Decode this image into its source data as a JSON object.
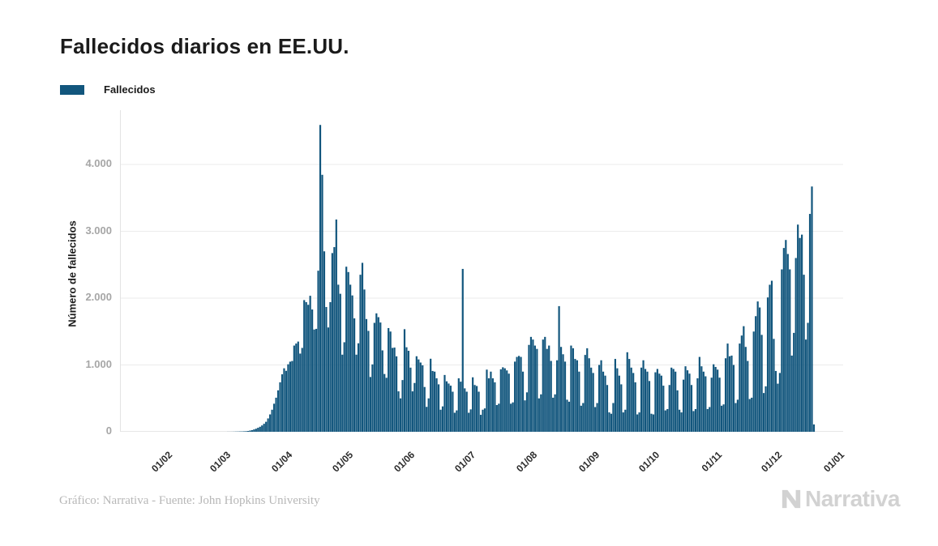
{
  "page": {
    "background": "#ffffff"
  },
  "header": {
    "title": "Fallecidos diarios en EE.UU."
  },
  "legend": {
    "items": [
      {
        "label": "Fallecidos",
        "color": "#12567d"
      }
    ]
  },
  "colors": {
    "bar": "#12567d",
    "grid_line": "#ebebeb",
    "baseline": "#cfcfcf",
    "axis_line": "#e3e3e3",
    "y_tick_text": "#a6a6a6",
    "x_tick_text": "#2b2b2b",
    "title_text": "#1b1b1b",
    "footer_text": "#b7b7b7",
    "brand_text": "#d2d2d2"
  },
  "footer": {
    "credit": "Gráfico: Narrativa - Fuente: John Hopkins University",
    "brand": "Narrativa"
  },
  "chart_data": {
    "type": "bar",
    "title": "Fallecidos diarios en EE.UU.",
    "xlabel": "",
    "ylabel": "Número de fallecidos",
    "series_name": "Fallecidos",
    "bar_color": "#12567d",
    "grid": true,
    "legend_position": "top-left",
    "ylim": [
      0,
      4600
    ],
    "yticks": [
      0,
      1000,
      2000,
      3000,
      4000
    ],
    "ytick_labels": [
      "0",
      "1.000",
      "2.000",
      "3.000",
      "4.000"
    ],
    "x_domain": {
      "start": "2020-01-01",
      "end": "2021-01-01"
    },
    "x_ticks": [
      {
        "date": "2020-02-01",
        "label": "01/02"
      },
      {
        "date": "2020-03-01",
        "label": "01/03"
      },
      {
        "date": "2020-04-01",
        "label": "01/04"
      },
      {
        "date": "2020-05-01",
        "label": "01/05"
      },
      {
        "date": "2020-06-01",
        "label": "01/06"
      },
      {
        "date": "2020-07-01",
        "label": "01/07"
      },
      {
        "date": "2020-08-01",
        "label": "01/08"
      },
      {
        "date": "2020-09-01",
        "label": "01/09"
      },
      {
        "date": "2020-10-01",
        "label": "01/10"
      },
      {
        "date": "2020-11-01",
        "label": "01/11"
      },
      {
        "date": "2020-12-01",
        "label": "01/12"
      },
      {
        "date": "2021-01-01",
        "label": "01/01"
      }
    ],
    "data_start_date": "2020-01-22",
    "frequency": "daily",
    "values": [
      0,
      0,
      0,
      0,
      0,
      0,
      0,
      0,
      0,
      0,
      0,
      0,
      0,
      0,
      0,
      0,
      0,
      0,
      0,
      0,
      0,
      0,
      0,
      0,
      0,
      0,
      0,
      0,
      0,
      0,
      0,
      0,
      0,
      0,
      0,
      0,
      0,
      0,
      1,
      1,
      1,
      2,
      3,
      4,
      5,
      6,
      7,
      9,
      12,
      18,
      25,
      35,
      46,
      60,
      75,
      95,
      120,
      150,
      200,
      260,
      330,
      420,
      510,
      620,
      740,
      860,
      950,
      912,
      1010,
      1049,
      1059,
      1290,
      1320,
      1350,
      1170,
      1255,
      1970,
      1940,
      1900,
      2035,
      1830,
      1530,
      1540,
      2410,
      4591,
      3845,
      2700,
      1867,
      1561,
      1940,
      2674,
      2763,
      3176,
      2201,
      2065,
      1154,
      1340,
      2470,
      2390,
      2201,
      2040,
      1697,
      1154,
      1324,
      2350,
      2528,
      2129,
      1687,
      1510,
      820,
      1008,
      1630,
      1772,
      1715,
      1635,
      1218,
      865,
      808,
      1552,
      1500,
      1255,
      1260,
      1129,
      605,
      500,
      774,
      1535,
      1265,
      1212,
      960,
      605,
      730,
      1130,
      1083,
      1036,
      994,
      670,
      373,
      500,
      1093,
      910,
      900,
      800,
      710,
      330,
      380,
      850,
      755,
      722,
      690,
      600,
      285,
      320,
      800,
      750,
      2437,
      650,
      600,
      285,
      335,
      815,
      700,
      685,
      600,
      254,
      330,
      350,
      930,
      800,
      900,
      800,
      740,
      400,
      420,
      935,
      965,
      950,
      918,
      870,
      420,
      440,
      1050,
      1120,
      1135,
      1120,
      900,
      470,
      590,
      1300,
      1420,
      1380,
      1290,
      1240,
      500,
      560,
      1380,
      1420,
      1240,
      1290,
      1060,
      510,
      560,
      1070,
      1880,
      1270,
      1160,
      1050,
      480,
      450,
      1290,
      1250,
      1090,
      1070,
      900,
      390,
      430,
      1150,
      1250,
      1100,
      960,
      880,
      370,
      430,
      1000,
      1070,
      900,
      840,
      700,
      290,
      270,
      430,
      1090,
      950,
      840,
      710,
      290,
      330,
      1190,
      1090,
      960,
      880,
      740,
      260,
      290,
      960,
      1070,
      940,
      900,
      760,
      270,
      260,
      890,
      940,
      870,
      840,
      690,
      320,
      340,
      700,
      960,
      940,
      900,
      620,
      330,
      290,
      780,
      980,
      920,
      870,
      700,
      310,
      340,
      800,
      1120,
      980,
      900,
      830,
      340,
      370,
      810,
      1010,
      970,
      930,
      810,
      390,
      410,
      1100,
      1320,
      1130,
      1140,
      1000,
      430,
      480,
      1320,
      1440,
      1580,
      1270,
      1060,
      490,
      510,
      1500,
      1730,
      1950,
      1860,
      1450,
      580,
      680,
      2010,
      2200,
      2260,
      1390,
      910,
      720,
      880,
      2430,
      2750,
      2870,
      2660,
      2430,
      1140,
      1480,
      2600,
      3100,
      2900,
      2950,
      2350,
      1380,
      1630,
      3260,
      3670,
      110
    ]
  }
}
